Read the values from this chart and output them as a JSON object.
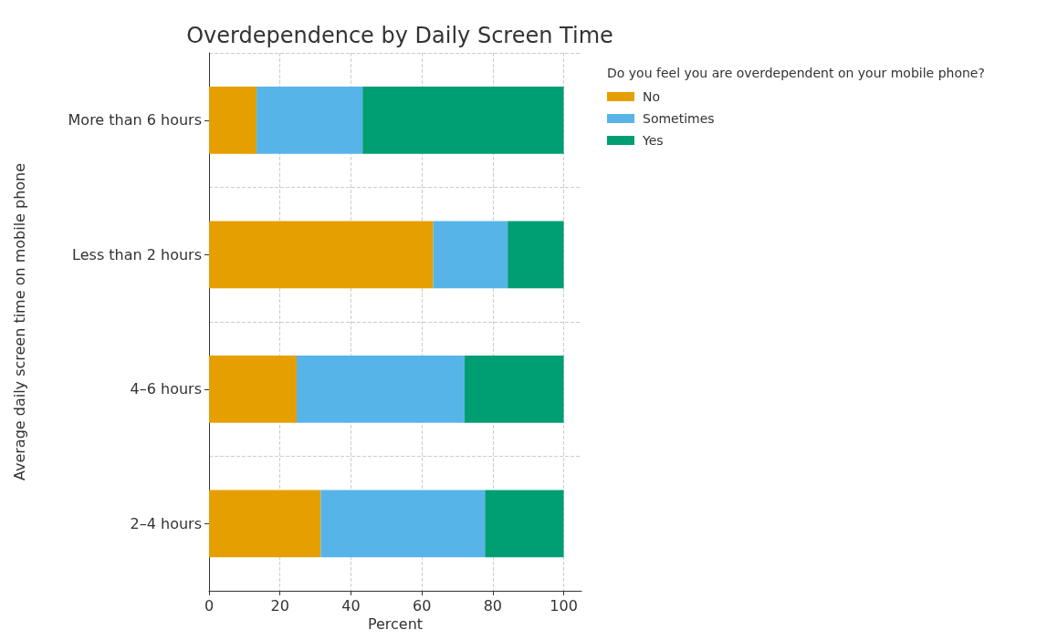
{
  "chart_data": {
    "type": "bar",
    "orientation": "horizontal",
    "stacked": true,
    "title": "Overdependence by Daily Screen Time",
    "xlabel": "Percent",
    "ylabel": "Average daily screen time on mobile phone",
    "legend_title": "Do you feel you are overdependent on your mobile phone?",
    "legend": "top right",
    "grid": true,
    "categories": [
      "More than 6 hours",
      "Less than 2 hours",
      "4–6 hours",
      "2–4 hours"
    ],
    "xlim": [
      0,
      105
    ],
    "xticks": [
      0,
      20,
      40,
      60,
      80,
      100
    ],
    "series": [
      {
        "name": "No",
        "color": "#e69f00",
        "values": [
          13.4,
          63.2,
          24.7,
          31.5
        ]
      },
      {
        "name": "Sometimes",
        "color": "#56b4e9",
        "values": [
          29.9,
          21.0,
          47.3,
          46.3
        ]
      },
      {
        "name": "Yes",
        "color": "#009e73",
        "values": [
          56.7,
          15.8,
          28.0,
          22.2
        ]
      }
    ]
  }
}
